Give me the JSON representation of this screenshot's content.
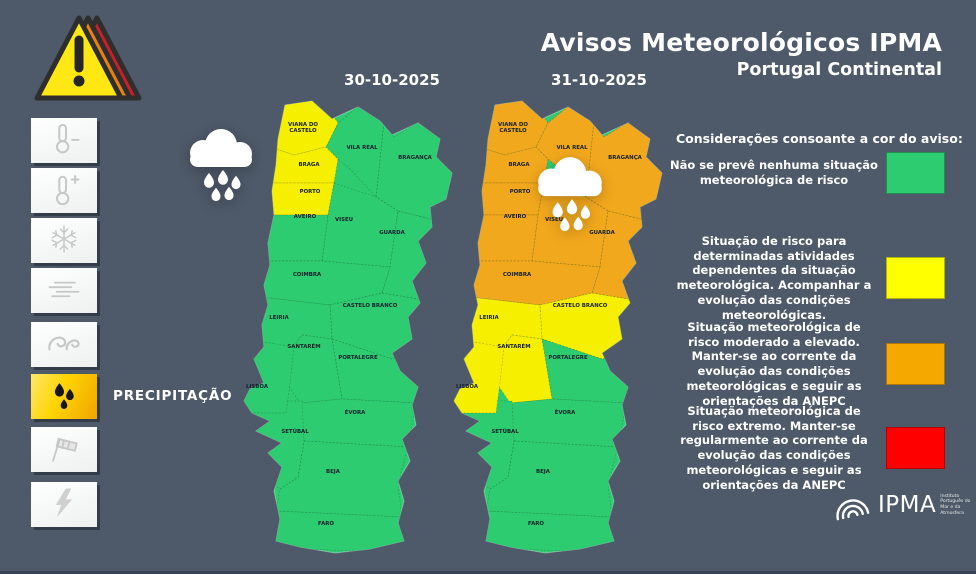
{
  "header": {
    "title": "Avisos Meteorológicos IPMA",
    "subtitle": "Portugal Continental"
  },
  "sidebar": {
    "items": [
      {
        "name": "cold-weather",
        "icon": "thermometer-minus-icon",
        "selected": false
      },
      {
        "name": "hot-weather",
        "icon": "thermometer-plus-icon",
        "selected": false
      },
      {
        "name": "snow",
        "icon": "snowflake-icon",
        "selected": false
      },
      {
        "name": "fog",
        "icon": "fog-icon",
        "selected": false
      },
      {
        "name": "maritime-agitation",
        "icon": "sea-waves-icon",
        "selected": false
      },
      {
        "name": "precipitation",
        "icon": "rain-drops-icon",
        "selected": true,
        "label": "PRECIPITAÇÃO"
      },
      {
        "name": "wind",
        "icon": "windsock-icon",
        "selected": false
      },
      {
        "name": "thunderstorm",
        "icon": "lightning-icon",
        "selected": false
      }
    ]
  },
  "districts": {
    "viana_do_castelo": "VIANA DO\nCASTELO",
    "vila_real": "VILA REAL",
    "braganca": "BRAGANÇA",
    "braga": "BRAGA",
    "porto": "PORTO",
    "aveiro": "AVEIRO",
    "viseu": "VISEU",
    "guarda": "GUARDA",
    "coimbra": "COIMBRA",
    "castelo_branco": "CASTELO BRANCO",
    "leiria": "LEIRIA",
    "santarem": "SANTARÉM",
    "portalegre": "PORTALEGRE",
    "lisboa": "LISBOA",
    "evora": "ÉVORA",
    "setubal": "SETÚBAL",
    "beja": "BEJA",
    "faro": "FARO"
  },
  "maps": [
    {
      "date": "30-10-2025",
      "levels": {
        "viana_do_castelo": "yellow",
        "braga": "yellow",
        "porto": "yellow",
        "vila_real": "green",
        "braganca": "green",
        "aveiro": "green",
        "viseu": "green",
        "guarda": "green",
        "coimbra": "green",
        "castelo_branco": "green",
        "leiria": "green",
        "santarem": "green",
        "portalegre": "green",
        "lisboa": "green",
        "evora": "green",
        "setubal": "green",
        "beja": "green",
        "faro": "green"
      }
    },
    {
      "date": "31-10-2025",
      "levels": {
        "viana_do_castelo": "orange",
        "braga": "orange",
        "porto": "orange",
        "vila_real": "orange",
        "braganca": "orange",
        "aveiro": "orange",
        "viseu": "orange",
        "guarda": "orange",
        "coimbra": "orange",
        "castelo_branco": "yellow",
        "leiria": "yellow",
        "santarem": "yellow",
        "lisboa": "yellow",
        "portalegre": "green",
        "evora": "green",
        "setubal": "green",
        "beja": "green",
        "faro": "green"
      }
    }
  ],
  "legend": {
    "heading": "Considerações consoante a cor do aviso:",
    "items": [
      {
        "level": "green",
        "color": "#2ecc71",
        "text": "Não se prevê nenhuma situação meteorológica de risco"
      },
      {
        "level": "yellow",
        "color": "#ffff00",
        "text": "Situação de risco para determinadas atividades dependentes da situação meteorológica. Acompanhar a evolução das condições meteorológicas."
      },
      {
        "level": "orange",
        "color": "#f5a800",
        "text": "Situação meteorológica de risco moderado a elevado. Manter-se ao corrente da evolução das condições meteorológicas e seguir as orientações da ANEPC"
      },
      {
        "level": "red",
        "color": "#ff0000",
        "text": "Situação meteorológica de risco extremo. Manter-se regularmente ao corrente da evolução das condições meteorológicas e seguir as orientações da ANEPC"
      }
    ]
  },
  "logo": {
    "name": "IPMA",
    "tagline": "Instituto Português do Mar e da Atmosfera"
  },
  "colors": {
    "background": "#4e5969",
    "green": "#2ecc71",
    "yellow": "#f7ef00",
    "orange": "#f2a81d",
    "red": "#ff0000",
    "warning_yellow": "#ffe713",
    "warning_orange": "#e8820c",
    "warning_red": "#c82026"
  }
}
